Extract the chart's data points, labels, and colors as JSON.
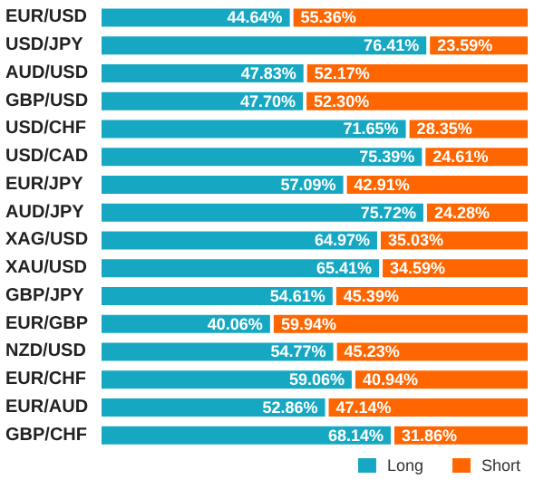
{
  "chart_data": {
    "type": "bar",
    "orientation": "horizontal",
    "stacked": true,
    "categories": [
      "EUR/USD",
      "USD/JPY",
      "AUD/USD",
      "GBP/USD",
      "USD/CHF",
      "USD/CAD",
      "EUR/JPY",
      "AUD/JPY",
      "XAG/USD",
      "XAU/USD",
      "GBP/JPY",
      "EUR/GBP",
      "NZD/USD",
      "EUR/CHF",
      "EUR/AUD",
      "GBP/CHF"
    ],
    "series": [
      {
        "name": "Long",
        "color": "#16a8c2",
        "values": [
          44.64,
          76.41,
          47.83,
          47.7,
          71.65,
          75.39,
          57.09,
          75.72,
          64.97,
          65.41,
          54.61,
          40.06,
          54.77,
          59.06,
          52.86,
          68.14
        ],
        "value_labels": [
          "44.64%",
          "76.41%",
          "47.83%",
          "47.70%",
          "71.65%",
          "75.39%",
          "57.09%",
          "75.72%",
          "64.97%",
          "65.41%",
          "54.61%",
          "40.06%",
          "54.77%",
          "59.06%",
          "52.86%",
          "68.14%"
        ]
      },
      {
        "name": "Short",
        "color": "#ff6600",
        "values": [
          55.36,
          23.59,
          52.17,
          52.3,
          28.35,
          24.61,
          42.91,
          24.28,
          35.03,
          34.59,
          45.39,
          59.94,
          45.23,
          40.94,
          47.14,
          31.86
        ],
        "value_labels": [
          "55.36%",
          "23.59%",
          "52.17%",
          "52.30%",
          "28.35%",
          "24.61%",
          "42.91%",
          "24.28%",
          "35.03%",
          "34.59%",
          "45.39%",
          "59.94%",
          "45.23%",
          "40.94%",
          "47.14%",
          "31.86%"
        ]
      }
    ],
    "legend": "bottom right",
    "tick_labels": "y"
  }
}
